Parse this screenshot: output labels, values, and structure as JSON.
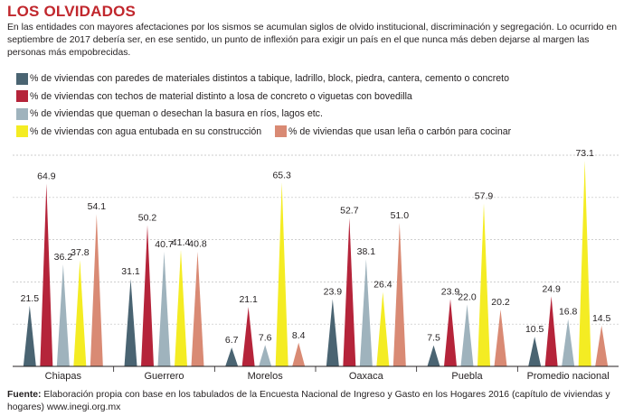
{
  "title": "LOS OLVIDADOS",
  "intro": "En las entidades con mayores afectaciones por los sismos se acumulan siglos de olvido institucional, discriminación  y segregación.  Lo ocurrido en septiembre de 2017 debería ser, en ese sentido, un punto de inflexión para exigir un país en el que nunca más deben dejarse al margen las personas más empobrecidas.",
  "source_label": "Fuente:",
  "source_text": " Elaboración propia con base en los tabulados de la Encuesta Nacional de Ingreso y Gasto en los Hogares 2016 (capítulo de viviendas y hogares) www.inegi.org.mx",
  "colors": {
    "walls": "#4a6472",
    "roofs": "#b5243a",
    "trash": "#9fb3bd",
    "water": "#f4ec23",
    "wood": "#d98a74",
    "grid": "#bfbfbf"
  },
  "chart_data": {
    "type": "bar",
    "categories": [
      "Chiapas",
      "Guerrero",
      "Morelos",
      "Oaxaca",
      "Puebla",
      "Promedio nacional"
    ],
    "series": [
      {
        "name": "% de viviendas con paredes de materiales distintos a tabique, ladrillo, block, piedra, cantera, cemento o concreto",
        "values": [
          21.5,
          31.1,
          6.7,
          23.9,
          7.5,
          10.5
        ]
      },
      {
        "name": "% de viviendas con techos de material distinto a losa de concreto o viguetas con bovedilla",
        "values": [
          64.9,
          50.2,
          21.1,
          52.7,
          23.9,
          24.9
        ]
      },
      {
        "name": "% de viviendas que queman o desechan la basura en ríos, lagos etc.",
        "values": [
          36.2,
          40.7,
          7.6,
          38.1,
          22.0,
          16.8
        ]
      },
      {
        "name": "% de viviendas con agua entubada en su construcción",
        "values": [
          37.8,
          41.4,
          65.3,
          26.4,
          57.9,
          73.1
        ]
      },
      {
        "name": "% de viviendas que usan leña o carbón para cocinar",
        "values": [
          54.1,
          40.8,
          8.4,
          51.0,
          20.2,
          14.5
        ]
      }
    ],
    "data_labels": [
      [
        "21.5",
        "64.9",
        "36.2",
        "37.8",
        "54.1"
      ],
      [
        "31.1",
        "50.2",
        "40.7",
        "41.4",
        "40.8"
      ],
      [
        "6.7",
        "21.1",
        "7.6",
        "65.3",
        "8.4"
      ],
      [
        "23.9",
        "52.7",
        "38.1",
        "26.4",
        "51.0"
      ],
      [
        "7.5",
        "23.9",
        "22.0",
        "57.9",
        "20.2"
      ],
      [
        "10.5",
        "24.9",
        "16.8",
        "73.1",
        "14.5"
      ]
    ],
    "ylim": [
      0,
      75
    ],
    "grid": true,
    "legend_position": "top"
  }
}
